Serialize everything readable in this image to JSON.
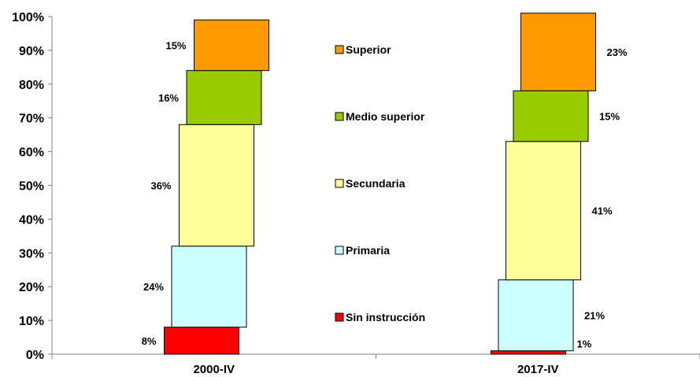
{
  "chart_data": {
    "type": "bar",
    "stacked": true,
    "percent_axis": true,
    "categories": [
      "2000-IV",
      "2017-IV"
    ],
    "series": [
      {
        "name": "Sin instrucción",
        "values": [
          8,
          1
        ],
        "labels": [
          "8%",
          "1%"
        ],
        "color": "#ff0000"
      },
      {
        "name": "Primaria",
        "values": [
          24,
          21
        ],
        "labels": [
          "24%",
          "21%"
        ],
        "color": "#ccffff"
      },
      {
        "name": "Secundaria",
        "values": [
          36,
          41
        ],
        "labels": [
          "36%",
          "41%"
        ],
        "color": "#ffff99"
      },
      {
        "name": "Medio superior",
        "values": [
          16,
          15
        ],
        "labels": [
          "16%",
          "15%"
        ],
        "color": "#99cc00"
      },
      {
        "name": "Superior",
        "values": [
          15,
          23
        ],
        "labels": [
          "15%",
          "23%"
        ],
        "color": "#ff9900"
      }
    ],
    "legend_order": [
      "Superior",
      "Medio superior",
      "Secundaria",
      "Primaria",
      "Sin instrucción"
    ],
    "yticks": [
      "0%",
      "10%",
      "20%",
      "30%",
      "40%",
      "50%",
      "60%",
      "70%",
      "80%",
      "90%",
      "100%"
    ],
    "ylim": [
      0,
      100
    ],
    "legend_position": "center",
    "grid": false,
    "title": "",
    "xlabel": "",
    "ylabel": ""
  }
}
